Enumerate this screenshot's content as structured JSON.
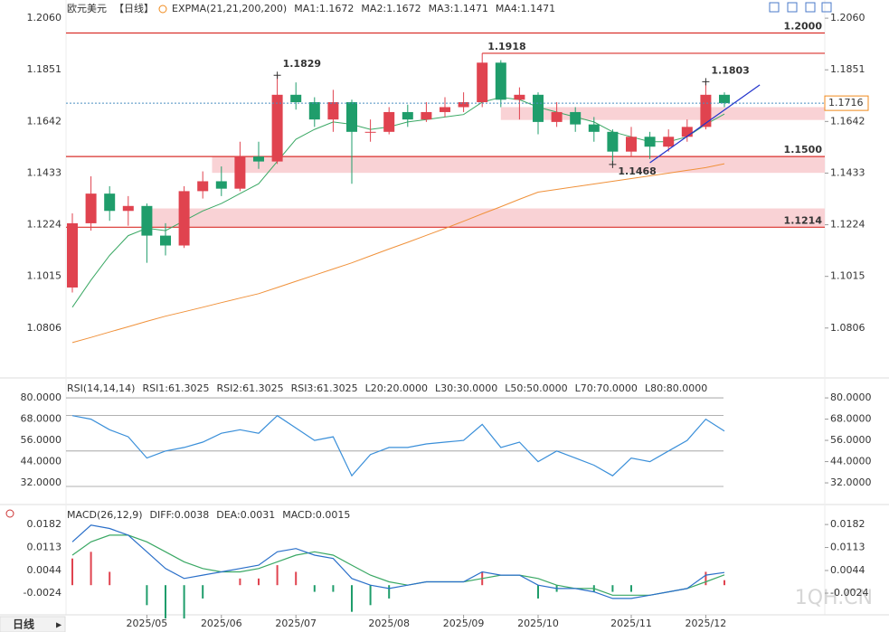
{
  "chart_data": [
    {
      "type": "candlestick",
      "panel": "price",
      "header": [
        {
          "text": "欧元美元",
          "color": "#222222"
        },
        {
          "text": "【日线】",
          "color": "#f08a1c"
        },
        {
          "text": "EXPMA(21,21,200,200)",
          "color": "#333333"
        },
        {
          "text": "MA1:1.1672",
          "color": "#4aa3e0"
        },
        {
          "text": "MA2:1.1672",
          "color": "#3aa864"
        },
        {
          "text": "MA3:1.1471",
          "color": "#4aa3e0"
        },
        {
          "text": "MA4:1.1471",
          "color": "#f0913a"
        }
      ],
      "up_color": "#e0434f",
      "down_color": "#1f9d6b",
      "open": [
        1.097,
        1.123,
        1.135,
        1.128,
        1.13,
        1.118,
        1.114,
        1.136,
        1.14,
        1.137,
        1.15,
        1.148,
        1.175,
        1.172,
        1.165,
        1.172,
        1.16,
        1.16,
        1.168,
        1.165,
        1.168,
        1.17,
        1.172,
        1.188,
        1.173,
        1.175,
        1.164,
        1.168,
        1.163,
        1.16,
        1.152,
        1.158,
        1.154,
        1.158,
        1.162,
        1.175
      ],
      "high": [
        1.127,
        1.142,
        1.138,
        1.134,
        1.131,
        1.123,
        1.138,
        1.144,
        1.146,
        1.156,
        1.156,
        1.1829,
        1.18,
        1.174,
        1.177,
        1.173,
        1.165,
        1.17,
        1.171,
        1.172,
        1.174,
        1.176,
        1.1918,
        1.189,
        1.178,
        1.176,
        1.172,
        1.17,
        1.166,
        1.161,
        1.162,
        1.16,
        1.161,
        1.165,
        1.1803,
        1.176
      ],
      "low": [
        1.095,
        1.12,
        1.124,
        1.122,
        1.107,
        1.11,
        1.113,
        1.133,
        1.134,
        1.136,
        1.145,
        1.147,
        1.169,
        1.162,
        1.16,
        1.139,
        1.156,
        1.159,
        1.162,
        1.164,
        1.166,
        1.168,
        1.17,
        1.17,
        1.165,
        1.159,
        1.162,
        1.16,
        1.156,
        1.1468,
        1.15,
        1.149,
        1.152,
        1.156,
        1.161,
        1.17
      ],
      "close": [
        1.123,
        1.135,
        1.128,
        1.13,
        1.118,
        1.114,
        1.136,
        1.14,
        1.137,
        1.15,
        1.148,
        1.175,
        1.172,
        1.165,
        1.172,
        1.16,
        1.16,
        1.168,
        1.165,
        1.168,
        1.17,
        1.172,
        1.188,
        1.173,
        1.175,
        1.164,
        1.168,
        1.163,
        1.16,
        1.152,
        1.158,
        1.154,
        1.158,
        1.162,
        1.175,
        1.1716
      ],
      "lines": [
        {
          "color": "#3aa864",
          "values": [
            1.089,
            1.1,
            1.11,
            1.118,
            1.121,
            1.12,
            1.124,
            1.128,
            1.131,
            1.135,
            1.139,
            1.148,
            1.157,
            1.161,
            1.164,
            1.163,
            1.161,
            1.162,
            1.164,
            1.165,
            1.166,
            1.167,
            1.172,
            1.174,
            1.173,
            1.17,
            1.168,
            1.166,
            1.164,
            1.16,
            1.158,
            1.156,
            1.156,
            1.158,
            1.163,
            1.1672
          ]
        },
        {
          "color": "#f0913a",
          "values": [
            1.0747,
            1.0768,
            1.079,
            1.0811,
            1.0833,
            1.0854,
            1.0872,
            1.089,
            1.0909,
            1.0927,
            1.0945,
            1.097,
            1.0995,
            1.102,
            1.1045,
            1.107,
            1.1098,
            1.1126,
            1.1153,
            1.1181,
            1.1209,
            1.1238,
            1.1268,
            1.1297,
            1.1327,
            1.1356,
            1.1367,
            1.1378,
            1.1389,
            1.14,
            1.1411,
            1.1422,
            1.1433,
            1.1444,
            1.1455,
            1.1471
          ]
        }
      ],
      "levels": [
        {
          "value": 1.2,
          "label": "1.2000",
          "from": 0
        },
        {
          "value": 1.1918,
          "label": "1.1918",
          "from": 22
        },
        {
          "value": 1.15,
          "label": "1.1500",
          "from": 0
        },
        {
          "value": 1.1214,
          "label": "1.1214",
          "from": 0
        }
      ],
      "level_color": "#d9302c",
      "zones": [
        {
          "low": 1.1648,
          "high": 1.17,
          "from": 23
        },
        {
          "low": 1.1434,
          "high": 1.15,
          "from": 7.5
        },
        {
          "low": 1.1214,
          "high": 1.129,
          "from": 4
        }
      ],
      "zone_color": "#f9d2d5",
      "peaks": [
        11,
        34
      ],
      "troughs": [
        29
      ],
      "trendline": {
        "from": [
          31,
          1.1475
        ],
        "to": [
          36.9,
          1.179
        ],
        "color": "#2233cc"
      },
      "last_price_color": "#f08a1c",
      "ylim": [
        1.0604,
        1.2097
      ],
      "yticks": [
        {
          "value": 1.206,
          "label": "1.2060"
        },
        1.1851,
        1.1642,
        1.1433,
        1.1224,
        1.1015,
        1.0806
      ]
    },
    {
      "type": "line",
      "panel": "rsi",
      "header": [
        {
          "text": "RSI(14,14,14)",
          "color": "#333333"
        },
        {
          "text": "RSI1:61.3025",
          "color": "#4aa3e0"
        },
        {
          "text": "RSI2:61.3025",
          "color": "#3aa864"
        },
        {
          "text": "RSI3:61.3025",
          "color": "#4aa3e0"
        },
        {
          "text": "L20:20.0000",
          "color": "#b5b5b5"
        },
        {
          "text": "L30:30.0000",
          "color": "#b5b5b5"
        },
        {
          "text": "L50:50.0000",
          "color": "#b5b5b5"
        },
        {
          "text": "L70:70.0000",
          "color": "#b5b5b5"
        },
        {
          "text": "L80:80.0000",
          "color": "#b5b5b5"
        }
      ],
      "values": [
        70,
        68,
        62,
        58,
        46,
        50,
        52,
        55,
        60,
        62,
        60,
        70,
        63,
        56,
        58,
        36,
        48,
        52,
        52,
        54,
        55,
        56,
        65,
        52,
        55,
        44,
        50,
        46,
        42,
        36,
        46,
        44,
        50,
        56,
        68,
        61.3025
      ],
      "color": "#3a8fd9",
      "reference_lines": [
        80,
        70,
        50,
        30
      ],
      "ylim": [
        21.3,
        87.7
      ],
      "yticks": [
        {
          "value": 80,
          "label": "80.0000"
        },
        {
          "value": 68,
          "label": "68.0000"
        },
        {
          "value": 56,
          "label": "56.0000"
        },
        {
          "value": 44,
          "label": "44.0000"
        },
        {
          "value": 32,
          "label": "32.0000"
        }
      ]
    },
    {
      "type": "macd",
      "panel": "macd",
      "header": [
        {
          "text": "MACD(26,12,9)",
          "color": "#333333"
        },
        {
          "text": "DIFF:0.0038",
          "color": "#4aa3e0"
        },
        {
          "text": "DEA:0.0031",
          "color": "#3aa864"
        },
        {
          "text": "MACD:0.0015",
          "color": "#4aa3e0"
        }
      ],
      "diff": {
        "color": "#2a6fc9",
        "values": [
          0.013,
          0.018,
          0.017,
          0.015,
          0.01,
          0.005,
          0.002,
          0.003,
          0.004,
          0.005,
          0.006,
          0.01,
          0.011,
          0.009,
          0.008,
          0.002,
          0,
          -0.001,
          0,
          0.001,
          0.001,
          0.001,
          0.004,
          0.003,
          0.003,
          0,
          -0.001,
          -0.001,
          -0.002,
          -0.004,
          -0.004,
          -0.003,
          -0.002,
          -0.001,
          0.003,
          0.0038
        ]
      },
      "dea": {
        "color": "#3aa864",
        "values": [
          0.009,
          0.013,
          0.015,
          0.015,
          0.013,
          0.01,
          0.007,
          0.005,
          0.004,
          0.004,
          0.005,
          0.007,
          0.009,
          0.01,
          0.009,
          0.006,
          0.003,
          0.001,
          0,
          0.001,
          0.001,
          0.001,
          0.002,
          0.003,
          0.003,
          0.002,
          0,
          -0.001,
          -0.001,
          -0.003,
          -0.003,
          -0.003,
          -0.002,
          -0.001,
          0.001,
          0.0031
        ]
      },
      "histogram": [
        0.008,
        0.01,
        0.004,
        0,
        -0.006,
        -0.01,
        -0.01,
        -0.004,
        0,
        0.002,
        0.002,
        0.006,
        0.004,
        -0.002,
        -0.002,
        -0.008,
        -0.006,
        -0.004,
        0,
        0,
        0,
        0,
        0.004,
        0,
        0,
        -0.004,
        -0.002,
        0,
        -0.002,
        -0.002,
        -0.002,
        0,
        0,
        0,
        0.004,
        0.0015
      ],
      "categories": [
        null,
        null,
        null,
        null,
        "2025/05",
        null,
        null,
        null,
        "2025/06",
        null,
        null,
        null,
        "2025/07",
        null,
        null,
        null,
        null,
        "2025/08",
        null,
        null,
        null,
        "2025/09",
        null,
        null,
        null,
        "2025/10",
        null,
        null,
        null,
        null,
        "2025/11",
        null,
        null,
        null,
        "2025/12",
        null
      ],
      "ylim": [
        -0.0089,
        0.0223
      ],
      "yticks": [
        0.0182,
        0.0113,
        0.0044,
        -0.0024
      ]
    }
  ],
  "footer": {
    "tab": "日线",
    "watermark": "1QH.CN"
  }
}
